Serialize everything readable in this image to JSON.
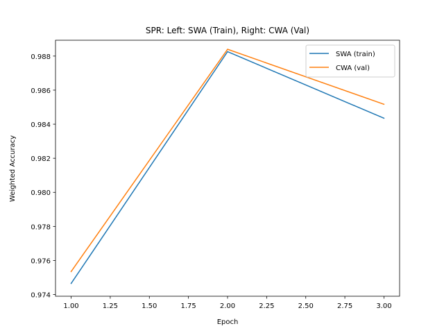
{
  "chart_data": {
    "type": "line",
    "title": "SPR: Left: SWA (Train), Right: CWA (Val)",
    "xlabel": "Epoch",
    "ylabel": "Weighted Accuracy",
    "x": [
      1.0,
      2.0,
      3.0
    ],
    "xlim": [
      0.9,
      3.1
    ],
    "ylim": [
      0.9739,
      0.98893
    ],
    "xticks": [
      1.0,
      1.25,
      1.5,
      1.75,
      2.0,
      2.25,
      2.5,
      2.75,
      3.0
    ],
    "xtick_labels": [
      "1.00",
      "1.25",
      "1.50",
      "1.75",
      "2.00",
      "2.25",
      "2.50",
      "2.75",
      "3.00"
    ],
    "yticks": [
      0.974,
      0.976,
      0.978,
      0.98,
      0.982,
      0.984,
      0.986,
      0.988
    ],
    "ytick_labels": [
      "0.974",
      "0.976",
      "0.978",
      "0.980",
      "0.982",
      "0.984",
      "0.986",
      "0.988"
    ],
    "grid": false,
    "legend_position": "top-right",
    "series": [
      {
        "name": "SWA (train)",
        "values": [
          0.97465,
          0.98826,
          0.98435
        ],
        "color": "#1f77b4"
      },
      {
        "name": "CWA (val)",
        "values": [
          0.97535,
          0.9884,
          0.98517
        ],
        "color": "#ff7f0e"
      }
    ]
  }
}
